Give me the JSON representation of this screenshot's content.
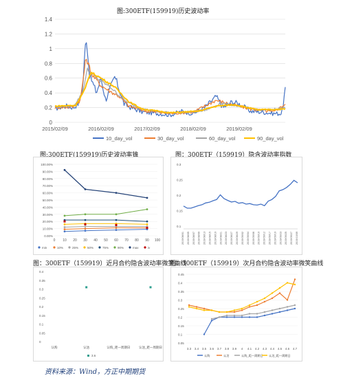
{
  "top_title": "图:300ETF(159919)历史波动率",
  "source": "资料来源：Wind，方正中期期货",
  "captions": {
    "cone": "图:300ETF(159919)历史波动率锥",
    "index": "图：300ETF（159919）隐含波动率指数",
    "near": "图：300ETF（159919）近月合约隐含波动率微笑曲线",
    "next": "图：300ETF（159919）次月合约隐含波动率微笑曲线"
  },
  "colors": {
    "blue": "#4472c4",
    "orange": "#ed7d31",
    "gray": "#a5a5a5",
    "yellow": "#ffc000",
    "dark": "#264478",
    "green": "#70ad47",
    "navy": "#1f4e79",
    "red": "#c00000",
    "teal": "#2e9e8f"
  },
  "chart_data": [
    {
      "type": "line",
      "ylim": [
        0,
        1.4
      ],
      "yticks": [
        "0",
        "0.2",
        "0.4",
        "0.6",
        "0.8",
        "1",
        "1.2",
        "1.4"
      ],
      "xticks": [
        "2015/02/09",
        "2016/02/09",
        "2017/02/09",
        "2018/02/09",
        "2019/02/09"
      ],
      "legend": [
        "10_day_vol",
        "30_day_vol",
        "60_day_vol",
        "90_day_vol"
      ],
      "x_start": "2015/02/09",
      "x_end": "2019/11/01",
      "series": [
        {
          "name": "10_day_vol",
          "anchors": [
            [
              0,
              0.19
            ],
            [
              0.05,
              0.22
            ],
            [
              0.08,
              0.2
            ],
            [
              0.1,
              0.25
            ],
            [
              0.12,
              0.45
            ],
            [
              0.135,
              1.2
            ],
            [
              0.15,
              0.65
            ],
            [
              0.18,
              0.4
            ],
            [
              0.2,
              0.6
            ],
            [
              0.22,
              0.3
            ],
            [
              0.26,
              0.62
            ],
            [
              0.3,
              0.25
            ],
            [
              0.33,
              0.2
            ],
            [
              0.38,
              0.14
            ],
            [
              0.45,
              0.12
            ],
            [
              0.5,
              0.1
            ],
            [
              0.55,
              0.15
            ],
            [
              0.6,
              0.12
            ],
            [
              0.65,
              0.2
            ],
            [
              0.7,
              0.35
            ],
            [
              0.73,
              0.2
            ],
            [
              0.77,
              0.28
            ],
            [
              0.8,
              0.25
            ],
            [
              0.85,
              0.15
            ],
            [
              0.9,
              0.14
            ],
            [
              0.95,
              0.12
            ],
            [
              0.985,
              0.12
            ],
            [
              1.0,
              0.45
            ]
          ]
        },
        {
          "name": "30_day_vol",
          "anchors": [
            [
              0,
              0.2
            ],
            [
              0.08,
              0.21
            ],
            [
              0.11,
              0.3
            ],
            [
              0.135,
              0.88
            ],
            [
              0.16,
              0.65
            ],
            [
              0.2,
              0.5
            ],
            [
              0.24,
              0.42
            ],
            [
              0.28,
              0.35
            ],
            [
              0.32,
              0.22
            ],
            [
              0.4,
              0.15
            ],
            [
              0.5,
              0.12
            ],
            [
              0.6,
              0.14
            ],
            [
              0.7,
              0.3
            ],
            [
              0.77,
              0.24
            ],
            [
              0.85,
              0.18
            ],
            [
              0.95,
              0.14
            ],
            [
              1.0,
              0.25
            ]
          ]
        },
        {
          "name": "60_day_vol",
          "anchors": [
            [
              0,
              0.21
            ],
            [
              0.08,
              0.22
            ],
            [
              0.12,
              0.4
            ],
            [
              0.14,
              0.72
            ],
            [
              0.18,
              0.6
            ],
            [
              0.24,
              0.48
            ],
            [
              0.3,
              0.3
            ],
            [
              0.36,
              0.2
            ],
            [
              0.45,
              0.14
            ],
            [
              0.55,
              0.13
            ],
            [
              0.65,
              0.16
            ],
            [
              0.72,
              0.26
            ],
            [
              0.8,
              0.22
            ],
            [
              0.9,
              0.16
            ],
            [
              1.0,
              0.2
            ]
          ]
        },
        {
          "name": "90_day_vol",
          "anchors": [
            [
              0,
              0.22
            ],
            [
              0.09,
              0.23
            ],
            [
              0.13,
              0.45
            ],
            [
              0.155,
              0.68
            ],
            [
              0.2,
              0.6
            ],
            [
              0.26,
              0.48
            ],
            [
              0.32,
              0.28
            ],
            [
              0.38,
              0.18
            ],
            [
              0.5,
              0.13
            ],
            [
              0.62,
              0.15
            ],
            [
              0.7,
              0.22
            ],
            [
              0.78,
              0.24
            ],
            [
              0.88,
              0.17
            ],
            [
              1.0,
              0.18
            ]
          ]
        }
      ]
    },
    {
      "type": "line",
      "xlim": [
        0,
        100
      ],
      "x": [
        10,
        30,
        60,
        90
      ],
      "ylim": [
        0,
        1.0
      ],
      "yticks": [
        "0.00%",
        "10.00%",
        "20.00%",
        "30.00%",
        "40.00%",
        "50.00%",
        "60.00%",
        "70.00%",
        "80.00%",
        "90.00%",
        "100.00%"
      ],
      "xticks": [
        "0",
        "10",
        "20",
        "30",
        "40",
        "50",
        "60",
        "70",
        "80",
        "90",
        "100"
      ],
      "legend": [
        "min",
        "10%",
        "25%",
        "50%",
        "75%",
        "90%",
        "max",
        "iv"
      ],
      "series": [
        {
          "name": "max",
          "values": [
            0.92,
            0.65,
            0.6,
            0.53
          ]
        },
        {
          "name": "90%",
          "values": [
            0.28,
            0.3,
            0.3,
            0.37
          ]
        },
        {
          "name": "75%",
          "values": [
            0.22,
            0.22,
            0.22,
            0.2
          ]
        },
        {
          "name": "50%",
          "values": [
            0.16,
            0.17,
            0.17,
            0.16
          ]
        },
        {
          "name": "25%",
          "values": [
            0.12,
            0.13,
            0.13,
            0.13
          ]
        },
        {
          "name": "10%",
          "values": [
            0.09,
            0.1,
            0.11,
            0.11
          ]
        },
        {
          "name": "min",
          "values": [
            0.06,
            0.07,
            0.08,
            0.09
          ]
        },
        {
          "name": "iv",
          "values": [
            0.2,
            0.16,
            0.15,
            0.11
          ]
        }
      ]
    },
    {
      "type": "line",
      "ylim": [
        0.1,
        0.3
      ],
      "yticks": [
        "0.1",
        "0.15",
        "0.2",
        "0.25",
        "0.3"
      ],
      "xticks": [
        "2019/08/01",
        "2019/08/05",
        "2019/08/07",
        "2019/08/09",
        "2019/08/13",
        "2019/08/15",
        "2019/08/19",
        "2019/08/21",
        "2019/08/23",
        "2019/08/27",
        "2019/08/29",
        "2019/09/02",
        "2019/09/04",
        "2019/09/06",
        "2019/09/10",
        "2019/09/12",
        "2019/09/17",
        "2019/09/19",
        "2019/09/23",
        "2019/09/25",
        "2019/09/27",
        "2019/10/09"
      ],
      "series": [
        {
          "name": "",
          "values": [
            0.165,
            0.158,
            0.158,
            0.162,
            0.166,
            0.169,
            0.175,
            0.177,
            0.182,
            0.186,
            0.201,
            0.189,
            0.183,
            0.178,
            0.18,
            0.174,
            0.176,
            0.171,
            0.173,
            0.169,
            0.168,
            0.171,
            0.166,
            0.181,
            0.186,
            0.196,
            0.214,
            0.218,
            0.225,
            0.235,
            0.248,
            0.24
          ]
        }
      ]
    },
    {
      "type": "scatter",
      "ylim": [
        0,
        0.4
      ],
      "yticks": [
        "0",
        "0.05",
        "0.1",
        "0.15",
        "0.2",
        "0.25",
        "0.3",
        "0.35",
        "0.4"
      ],
      "categories": [
        "认购",
        "认沽",
        "认购_距一周期日",
        "认沽_距一周期日"
      ],
      "legend": [
        "3.6"
      ],
      "series": [
        {
          "name": "3.6",
          "values": [
            null,
            0.31,
            null,
            0.31
          ]
        }
      ]
    },
    {
      "type": "line",
      "ylim": [
        0.05,
        0.45
      ],
      "yticks": [
        "0.05",
        "0.1",
        "0.15",
        "0.2",
        "0.25",
        "0.3",
        "0.35",
        "0.4",
        "0.45"
      ],
      "categories": [
        "3.3",
        "3.4",
        "3.5",
        "3.6",
        "3.7",
        "3.8",
        "3.9",
        "4",
        "4.1",
        "4.2",
        "4.3",
        "4.4",
        "4.5",
        "4.6",
        "4.7"
      ],
      "legend": [
        "认购",
        "认沽",
        "认购_距一周期日",
        "认沽_距一周期日"
      ],
      "series": [
        {
          "name": "认购",
          "values": [
            null,
            null,
            0.1,
            0.18,
            0.2,
            0.2,
            0.2,
            0.2,
            0.2,
            0.2,
            0.21,
            0.22,
            0.23,
            0.24,
            0.25
          ]
        },
        {
          "name": "认沽",
          "values": [
            0.27,
            0.26,
            0.25,
            0.24,
            0.23,
            0.23,
            0.23,
            0.24,
            0.26,
            0.27,
            0.29,
            0.31,
            0.34,
            0.3,
            0.42
          ]
        },
        {
          "name": "认购_距一周期日",
          "values": [
            null,
            null,
            null,
            0.19,
            0.2,
            0.21,
            0.21,
            0.21,
            0.22,
            0.22,
            0.23,
            0.24,
            0.25,
            0.26,
            0.27
          ]
        },
        {
          "name": "认沽_距一周期日",
          "values": [
            0.26,
            0.25,
            0.24,
            0.24,
            0.23,
            0.23,
            0.24,
            0.25,
            0.27,
            0.29,
            0.31,
            0.34,
            0.37,
            0.4,
            0.39
          ]
        }
      ]
    }
  ]
}
